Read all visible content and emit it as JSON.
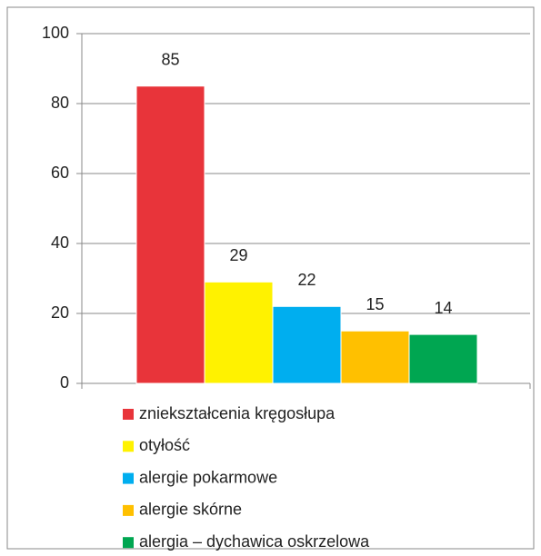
{
  "chart_data": {
    "type": "bar",
    "series": [
      {
        "name": "zniekształcenia kręgosłupa",
        "color": "#e8343a",
        "values": [
          85
        ]
      },
      {
        "name": "otyłość",
        "color": "#fff200",
        "values": [
          29
        ]
      },
      {
        "name": "alergie pokarmowe",
        "color": "#00aeef",
        "values": [
          22
        ]
      },
      {
        "name": "alergie skórne",
        "color": "#ffc000",
        "values": [
          15
        ]
      },
      {
        "name": "alergia – dychawica oskrzelowa",
        "color": "#00a651",
        "values": [
          14
        ]
      }
    ],
    "ylim": [
      0,
      100
    ],
    "yticks": [
      0,
      20,
      40,
      60,
      80,
      100
    ],
    "grid": true,
    "legend": "bottom"
  }
}
